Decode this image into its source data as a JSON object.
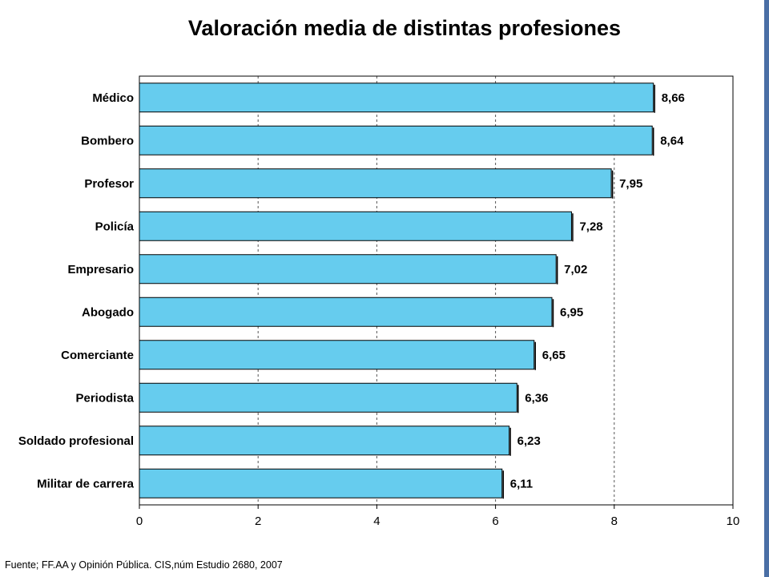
{
  "chart_data": {
    "type": "bar",
    "orientation": "horizontal",
    "title": "Valoración media de distintas profesiones",
    "categories": [
      "Médico",
      "Bombero",
      "Profesor",
      "Policía",
      "Empresario",
      "Abogado",
      "Comerciante",
      "Periodista",
      "Soldado profesional",
      "Militar de carrera"
    ],
    "values": [
      8.66,
      8.64,
      7.95,
      7.28,
      7.02,
      6.95,
      6.65,
      6.36,
      6.23,
      6.11
    ],
    "value_labels": [
      "8,66",
      "8,64",
      "7,95",
      "7,28",
      "7,02",
      "6,95",
      "6,65",
      "6,36",
      "6,23",
      "6,11"
    ],
    "xlim": [
      0,
      10
    ],
    "x_ticks": [
      0,
      2,
      4,
      6,
      8,
      10
    ],
    "x_tick_labels": [
      "0",
      "2",
      "4",
      "6",
      "8",
      "10"
    ],
    "grid": "vertical dashed",
    "bar_color": "#66ccee",
    "xlabel": "",
    "ylabel": ""
  },
  "source": "Fuente; FF.AA y Opinión Pública. CIS,núm Estudio 2680, 2007"
}
